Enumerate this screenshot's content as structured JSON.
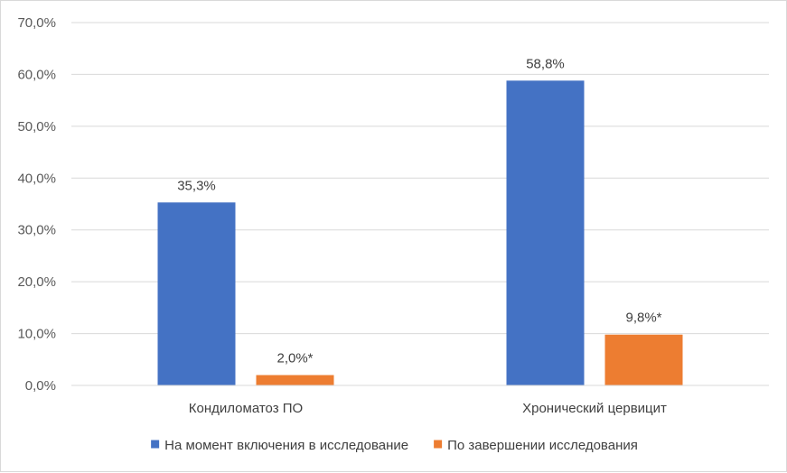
{
  "chart_data": {
    "type": "bar",
    "title": "",
    "xlabel": "",
    "ylabel": "",
    "ylim": [
      0,
      70
    ],
    "yticks": [
      "0,0%",
      "10,0%",
      "20,0%",
      "30,0%",
      "40,0%",
      "50,0%",
      "60,0%",
      "70,0%"
    ],
    "ytick_values": [
      0,
      10,
      20,
      30,
      40,
      50,
      60,
      70
    ],
    "grid": true,
    "legend_position": "bottom",
    "categories": [
      "Кондиломатоз ПО",
      "Хронический цервицит"
    ],
    "series": [
      {
        "name": "На момент включения в исследование",
        "color": "#4472c4",
        "values": [
          35.3,
          58.8
        ],
        "labels": [
          "35,3%",
          "58,8%"
        ]
      },
      {
        "name": "По завершении исследования",
        "color": "#ed7d31",
        "values": [
          2.0,
          9.8
        ],
        "labels": [
          "2,0%*",
          "9,8%*"
        ]
      }
    ]
  }
}
